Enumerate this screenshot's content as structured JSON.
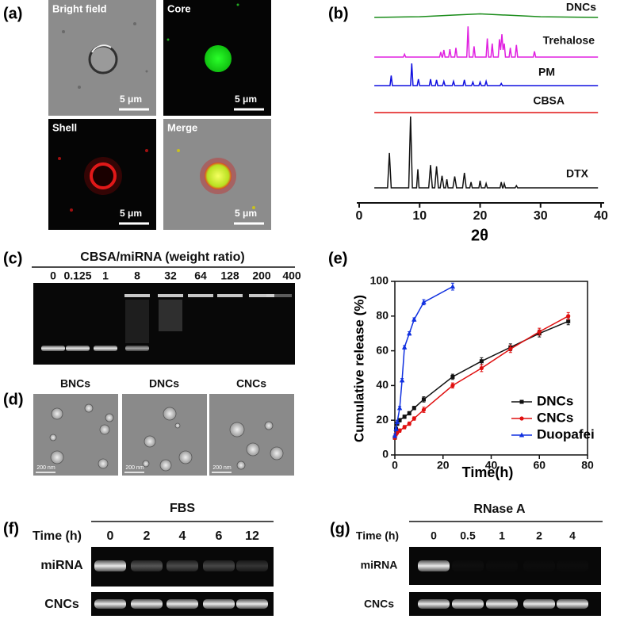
{
  "panel_labels": [
    "(a)",
    "(b)",
    "(c)",
    "(d)",
    "(e)",
    "(f)",
    "(g)"
  ],
  "panel_a": {
    "images": [
      {
        "label": "Bright field",
        "scale": "5 μm"
      },
      {
        "label": "Core",
        "scale": "5 μm"
      },
      {
        "label": "Shell",
        "scale": "5 μm"
      },
      {
        "label": "Merge",
        "scale": "5 μm"
      }
    ]
  },
  "panel_c": {
    "title": "CBSA/miRNA (weight ratio)",
    "lanes": [
      "0",
      "0.125",
      "1",
      "8",
      "32",
      "64",
      "128",
      "200",
      "400"
    ]
  },
  "panel_d": {
    "images": [
      {
        "label": "BNCs",
        "scale": "200 nm"
      },
      {
        "label": "DNCs",
        "scale": "200 nm"
      },
      {
        "label": "CNCs",
        "scale": "200 nm"
      }
    ]
  },
  "panel_f": {
    "title": "FBS",
    "time_label": "Time (h)",
    "lanes": [
      "0",
      "2",
      "4",
      "6",
      "12"
    ],
    "rows": [
      "miRNA",
      "CNCs"
    ]
  },
  "panel_g": {
    "title": "RNase A",
    "time_label": "Time (h)",
    "lanes": [
      "0",
      "0.5",
      "1",
      "2",
      "4"
    ],
    "rows": [
      "miRNA",
      "CNCs"
    ]
  },
  "chart_data": [
    {
      "type": "line",
      "x_label": "2θ",
      "xlim": [
        0,
        40
      ],
      "xticks": [
        0,
        10,
        20,
        30,
        40
      ],
      "series": [
        {
          "name": "DNCs",
          "color": "#1a8c1a",
          "x": [
            2.5,
            10,
            15,
            20,
            25,
            30,
            39.5
          ],
          "values": [
            0,
            1,
            3,
            5,
            3,
            1,
            0
          ]
        },
        {
          "name": "Trehalose",
          "color": "#e020e0",
          "x": [
            2.5,
            7.3,
            7.5,
            7.7,
            13.3,
            13.5,
            13.7,
            13.8,
            14.0,
            14.2,
            14.8,
            15.0,
            15.2,
            15.8,
            16.0,
            16.2,
            17.8,
            18.0,
            18.2,
            18.8,
            19.0,
            19.2,
            21.0,
            21.2,
            21.4,
            21.8,
            22.0,
            22.2,
            23.0,
            23.2,
            23.4,
            23.6,
            23.8,
            24.0,
            24.2,
            24.8,
            25.0,
            25.2,
            25.8,
            26.0,
            26.2,
            28.8,
            29.0,
            29.2,
            39.5
          ],
          "values": [
            0,
            0,
            4,
            0,
            0,
            7,
            0,
            0,
            10,
            0,
            0,
            11,
            0,
            0,
            13,
            0,
            0,
            43,
            0,
            0,
            15,
            0,
            0,
            26,
            0,
            0,
            19,
            0,
            0,
            25,
            10,
            32,
            10,
            19,
            0,
            0,
            13,
            0,
            0,
            17,
            0,
            0,
            8,
            0,
            0
          ]
        },
        {
          "name": "PM",
          "color": "#1010e0",
          "x": [
            2.5,
            5.1,
            5.3,
            5.5,
            8.5,
            8.7,
            8.9,
            9.6,
            9.8,
            10.0,
            11.6,
            11.8,
            12.0,
            12.6,
            12.8,
            13.0,
            13.8,
            14.0,
            14.2,
            15.4,
            15.6,
            15.8,
            17.2,
            17.4,
            17.6,
            18.6,
            18.8,
            19.0,
            19.8,
            20.0,
            20.2,
            20.8,
            21.0,
            21.2,
            23.3,
            23.5,
            23.7,
            39.5
          ],
          "values": [
            0,
            0,
            14,
            0,
            0,
            31,
            0,
            0,
            9,
            0,
            0,
            9,
            0,
            0,
            8,
            0,
            0,
            6,
            0,
            0,
            6,
            0,
            0,
            8,
            0,
            0,
            5,
            0,
            0,
            5,
            0,
            0,
            6,
            0,
            0,
            3,
            0,
            0
          ]
        },
        {
          "name": "CBSA",
          "color": "#e01010",
          "x": [
            2.5,
            10,
            20,
            30,
            39.5
          ],
          "values": [
            1,
            1,
            1,
            1,
            1
          ]
        },
        {
          "name": "DTX",
          "color": "#111111",
          "x": [
            2.5,
            4.7,
            5.0,
            5.3,
            8.2,
            8.5,
            8.8,
            9.5,
            9.7,
            9.9,
            11.5,
            11.8,
            12.1,
            12.5,
            12.8,
            13.1,
            13.4,
            13.7,
            14.0,
            14.3,
            14.5,
            14.7,
            15.5,
            15.8,
            16.1,
            17.1,
            17.4,
            17.7,
            18.3,
            18.5,
            18.7,
            19.8,
            20.0,
            20.2,
            20.8,
            21.0,
            21.2,
            23.3,
            23.5,
            23.7,
            23.8,
            24.0,
            24.2,
            25.8,
            26.0,
            26.2,
            39.5
          ],
          "values": [
            0,
            0,
            49,
            0,
            0,
            100,
            0,
            0,
            26,
            0,
            0,
            32,
            0,
            0,
            30,
            0,
            0,
            17,
            0,
            0,
            12,
            0,
            0,
            16,
            0,
            0,
            21,
            0,
            0,
            8,
            0,
            0,
            10,
            0,
            0,
            6,
            0,
            0,
            8,
            0,
            0,
            6,
            0,
            0,
            3,
            0,
            0
          ]
        }
      ]
    },
    {
      "type": "line",
      "x_label": "Time(h)",
      "y_label": "Cumulative release (%)",
      "xlim": [
        0,
        80
      ],
      "xticks": [
        0,
        20,
        40,
        60,
        80
      ],
      "ylim": [
        0,
        100
      ],
      "yticks": [
        0,
        20,
        40,
        60,
        80,
        100
      ],
      "legend": "lower right",
      "series": [
        {
          "name": "DNCs",
          "color": "#111111",
          "marker": "square",
          "x": [
            0,
            0.5,
            1,
            2,
            4,
            6,
            8,
            12,
            24,
            36,
            48,
            60,
            72
          ],
          "values": [
            10,
            15,
            18,
            20,
            22,
            24,
            27,
            32,
            45,
            54,
            62,
            70,
            77
          ],
          "errors": [
            1,
            1,
            1,
            1,
            1,
            1,
            1,
            1.5,
            1.5,
            2,
            2,
            2,
            2
          ]
        },
        {
          "name": "CNCs",
          "color": "#e01010",
          "marker": "circle",
          "x": [
            0,
            0.5,
            1,
            2,
            4,
            6,
            8,
            12,
            24,
            36,
            48,
            60,
            72
          ],
          "values": [
            10,
            12,
            13,
            14,
            16,
            18,
            21,
            26,
            40,
            50,
            61,
            71,
            80
          ],
          "errors": [
            1,
            1,
            1,
            1,
            1,
            1,
            1,
            1.5,
            1.5,
            2,
            2,
            2,
            2
          ]
        },
        {
          "name": "Duopafei",
          "color": "#1030e0",
          "marker": "triangle",
          "x": [
            0,
            0.5,
            1,
            2,
            3,
            4,
            6,
            8,
            12,
            24
          ],
          "values": [
            11,
            15,
            19,
            27,
            43,
            62,
            70,
            78,
            88,
            97
          ],
          "errors": [
            1,
            1,
            1,
            1,
            1,
            1,
            1,
            1,
            1.5,
            2
          ]
        }
      ]
    }
  ]
}
